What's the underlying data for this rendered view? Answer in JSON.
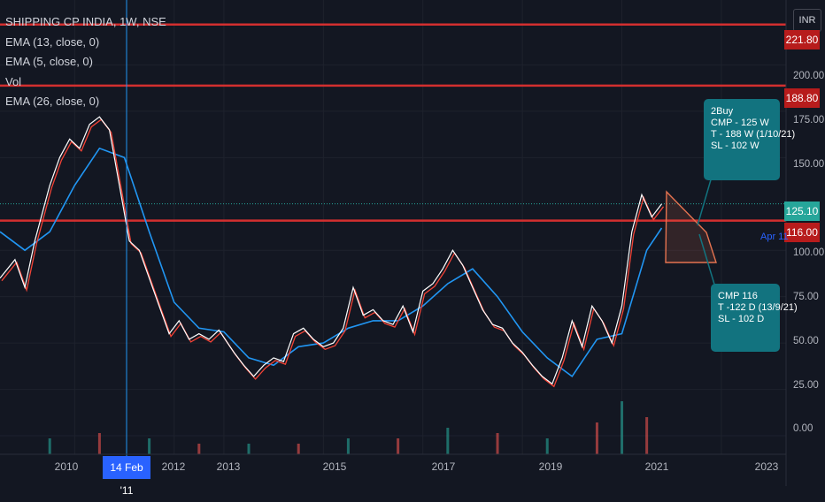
{
  "legend": {
    "title": "SHIPPING CP INDIA, 1W, NSE",
    "items": [
      "EMA (13, close, 0)",
      "EMA (5, close, 0)",
      "Vol",
      "EMA (26, close, 0)"
    ]
  },
  "currency": "INR",
  "price_axis": {
    "ticks": [
      "200.00",
      "175.00",
      "150.00",
      "100.00",
      "75.00",
      "50.00",
      "25.00",
      "0.00"
    ],
    "tick_values": [
      200,
      175,
      150,
      100,
      75,
      50,
      25,
      0
    ],
    "tags": [
      {
        "label": "221.80",
        "value": 221.8,
        "color": "#b71c1c"
      },
      {
        "label": "188.80",
        "value": 188.8,
        "color": "#b71c1c"
      },
      {
        "label": "125.10",
        "value": 125.1,
        "color": "#26a69a"
      },
      {
        "label": "116.00",
        "value": 116.0,
        "color": "#b71c1c"
      }
    ]
  },
  "time_axis": {
    "ticks": [
      "2010",
      "2012",
      "2013",
      "2015",
      "2017",
      "2019",
      "2021",
      "2023"
    ],
    "tick_years": [
      2010,
      2012,
      2013,
      2015,
      2017,
      2019,
      2021,
      2023
    ],
    "cursor_label": "14 Feb '11",
    "cursor_year": 2011.12
  },
  "annotations": {
    "note1": [
      "2Buy",
      "CMP - 125 W",
      "T - 188 W (1/10/21)",
      "SL - 102 W"
    ],
    "note2": [
      "CMP 116",
      "T -122 D (13/9/21)",
      "SL - 102 D"
    ],
    "marker_label": "Apr 11"
  },
  "colors": {
    "background": "#131722",
    "horizontal_lines": "#d32f2f",
    "price_line": "#ffffff",
    "ema5": "#f44336",
    "ema13": "#ff9800",
    "ema26": "#2196f3",
    "volume_up": "#26a69a",
    "volume_down": "#ef5350",
    "callout": "#12737f",
    "cursor": "#2196f3",
    "triangle": "#e57350"
  },
  "chart_data": {
    "type": "line",
    "title": "SHIPPING CP INDIA, 1W, NSE",
    "xlabel": "",
    "ylabel": "",
    "xlim": [
      2008.5,
      2024.3
    ],
    "ylim": [
      -10,
      235
    ],
    "horizontal_levels": [
      221.8,
      188.8,
      116.0
    ],
    "last_price": 125.1,
    "series": [
      {
        "name": "Close",
        "x": [
          2008.5,
          2008.8,
          2009.0,
          2009.2,
          2009.5,
          2009.7,
          2009.9,
          2010.1,
          2010.3,
          2010.5,
          2010.7,
          2010.9,
          2011.1,
          2011.3,
          2011.5,
          2011.7,
          2011.9,
          2012.1,
          2012.3,
          2012.5,
          2012.7,
          2012.9,
          2013.2,
          2013.4,
          2013.6,
          2013.8,
          2014.0,
          2014.2,
          2014.4,
          2014.6,
          2014.8,
          2015.0,
          2015.2,
          2015.4,
          2015.6,
          2015.8,
          2016.0,
          2016.2,
          2016.4,
          2016.6,
          2016.8,
          2017.0,
          2017.2,
          2017.4,
          2017.6,
          2017.8,
          2018.0,
          2018.2,
          2018.4,
          2018.6,
          2018.8,
          2019.0,
          2019.2,
          2019.4,
          2019.6,
          2019.8,
          2020.0,
          2020.2,
          2020.4,
          2020.6,
          2020.8,
          2021.0,
          2021.2,
          2021.4,
          2021.6,
          2021.8
        ],
        "values": [
          85,
          95,
          80,
          105,
          135,
          150,
          160,
          155,
          168,
          172,
          165,
          135,
          105,
          100,
          85,
          70,
          55,
          62,
          52,
          55,
          52,
          57,
          45,
          38,
          32,
          38,
          42,
          40,
          55,
          58,
          52,
          48,
          50,
          58,
          80,
          65,
          68,
          62,
          60,
          70,
          56,
          78,
          82,
          90,
          100,
          92,
          80,
          68,
          60,
          58,
          50,
          45,
          38,
          32,
          28,
          42,
          62,
          48,
          70,
          62,
          50,
          70,
          110,
          130,
          118,
          125
        ]
      },
      {
        "name": "EMA (26, close, 0)",
        "x": [
          2008.5,
          2009.0,
          2009.5,
          2010.0,
          2010.5,
          2011.0,
          2011.5,
          2012.0,
          2012.5,
          2013.0,
          2013.5,
          2014.0,
          2014.5,
          2015.0,
          2015.5,
          2016.0,
          2016.5,
          2017.0,
          2017.5,
          2018.0,
          2018.5,
          2019.0,
          2019.5,
          2020.0,
          2020.5,
          2021.0,
          2021.5,
          2021.8
        ],
        "values": [
          110,
          100,
          110,
          135,
          155,
          150,
          110,
          72,
          58,
          56,
          42,
          38,
          48,
          50,
          58,
          62,
          62,
          70,
          82,
          90,
          75,
          56,
          42,
          32,
          52,
          55,
          100,
          112
        ]
      }
    ],
    "volume": {
      "x": [
        2009.5,
        2010.5,
        2011.5,
        2012.5,
        2013.5,
        2014.5,
        2015.5,
        2016.5,
        2017.5,
        2018.5,
        2019.5,
        2020.5,
        2021.0,
        2021.5
      ],
      "values": [
        0.3,
        0.4,
        0.3,
        0.2,
        0.2,
        0.2,
        0.3,
        0.3,
        0.5,
        0.4,
        0.3,
        0.6,
        1.0,
        0.7
      ]
    }
  }
}
